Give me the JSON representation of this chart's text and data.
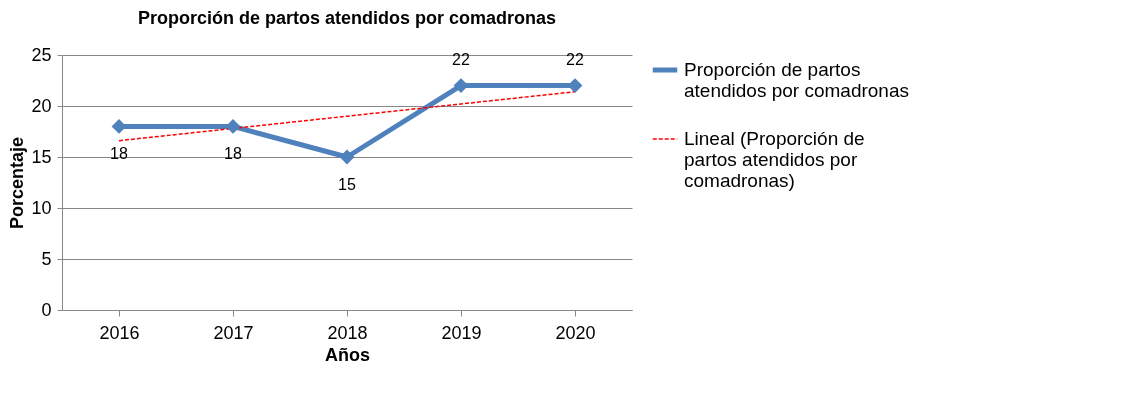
{
  "chart_data": {
    "type": "line",
    "title": "Proporción de partos atendidos por comadronas",
    "xlabel": "Años",
    "ylabel": "Porcentaje",
    "categories": [
      "2016",
      "2017",
      "2018",
      "2019",
      "2020"
    ],
    "series": [
      {
        "name": "Proporción de partos atendidos por comadronas",
        "color": "#4f81bd",
        "values": [
          18,
          18,
          15,
          22,
          22
        ],
        "value_labels": [
          "18",
          "18",
          "15",
          "22",
          "22"
        ],
        "marker": "diamond",
        "line_style": "solid"
      },
      {
        "name": "Lineal (Proporción de partos atendidos por comadronas)",
        "type": "line",
        "color": "#ff0000",
        "values": [
          16.6,
          17.8,
          19,
          20.2,
          21.4
        ],
        "marker": "none",
        "line_style": "dashed"
      }
    ],
    "ylim": [
      0,
      25
    ],
    "yticks": [
      0,
      5,
      10,
      15,
      20,
      25
    ],
    "grid": "y",
    "legend": "right"
  }
}
